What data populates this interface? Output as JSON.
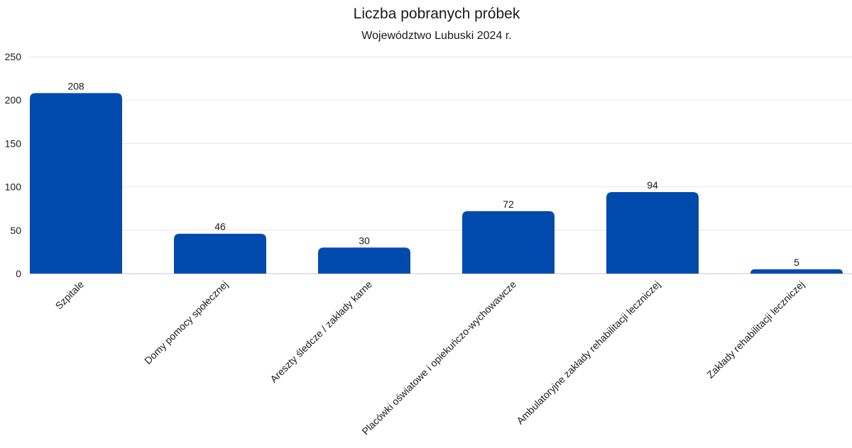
{
  "chart_data": {
    "type": "bar",
    "title": "Liczba pobranych próbek",
    "subtitle": "Województwo Lubuski 2024 r.",
    "xlabel": "",
    "ylabel": "",
    "ylim": [
      0,
      250
    ],
    "yticks": [
      0,
      50,
      100,
      150,
      200,
      250
    ],
    "grid": true,
    "legend": "none",
    "bar_color": "#004AAD",
    "categories": [
      "Szpitale",
      "Domy pomocy społecznej",
      "Areszty śledcze / zakłady karne",
      "Placówki oświatowe i opiekuńczo-wychowawcze",
      "Ambulatoryjne zakłady rehabilitacji leczniczej",
      "Zakłady rehabilitacji leczniczej"
    ],
    "values": [
      208,
      46,
      30,
      72,
      94,
      5
    ]
  }
}
